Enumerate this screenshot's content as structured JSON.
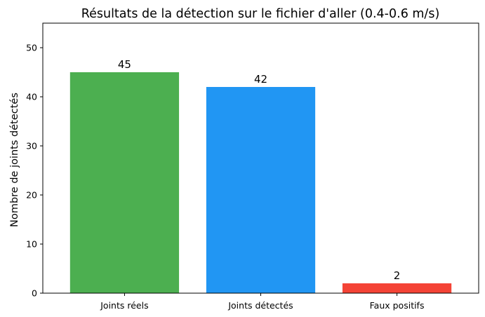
{
  "chart_data": {
    "type": "bar",
    "title": "Résultats de la détection sur le fichier d'aller (0.4-0.6 m/s)",
    "xlabel": "",
    "ylabel": "Nombre de joints détectés",
    "categories": [
      "Joints réels",
      "Joints détectés",
      "Faux positifs"
    ],
    "values": [
      45,
      42,
      2
    ],
    "data_labels": [
      "45",
      "42",
      "2"
    ],
    "colors": [
      "#4caf50",
      "#2196f3",
      "#f44336"
    ],
    "ylim": [
      0,
      55
    ],
    "yticks": [
      0,
      10,
      20,
      30,
      40,
      50
    ],
    "ytick_labels": [
      "0",
      "10",
      "20",
      "30",
      "40",
      "50"
    ],
    "grid": false,
    "legend": "none"
  }
}
